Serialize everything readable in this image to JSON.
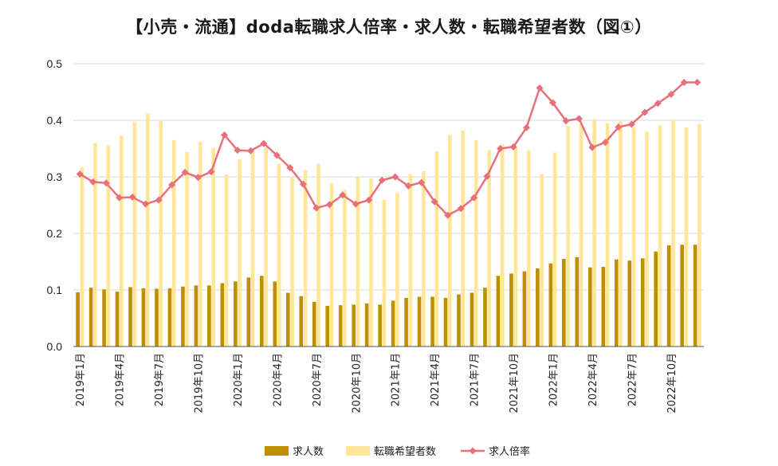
{
  "chart_data": {
    "type": "bar",
    "title": "【小売・流通】doda転職求人倍率・求人数・転職希望者数（図①）",
    "xlabel": "",
    "ylabel": "",
    "ylim": [
      0,
      0.5
    ],
    "yticks": [
      "0.0",
      "0.1",
      "0.2",
      "0.3",
      "0.4",
      "0.5"
    ],
    "grid": "horizontal",
    "legend_position": "bottom",
    "categories": [
      "2019年1月",
      "2019年2月",
      "2019年3月",
      "2019年4月",
      "2019年5月",
      "2019年6月",
      "2019年7月",
      "2019年8月",
      "2019年9月",
      "2019年10月",
      "2019年11月",
      "2019年12月",
      "2020年1月",
      "2020年2月",
      "2020年3月",
      "2020年4月",
      "2020年5月",
      "2020年6月",
      "2020年7月",
      "2020年8月",
      "2020年9月",
      "2020年10月",
      "2020年11月",
      "2020年12月",
      "2021年1月",
      "2021年2月",
      "2021年3月",
      "2021年4月",
      "2021年5月",
      "2021年6月",
      "2021年7月",
      "2021年8月",
      "2021年9月",
      "2021年10月",
      "2021年11月",
      "2021年12月",
      "2022年1月",
      "2022年2月",
      "2022年3月",
      "2022年4月",
      "2022年5月",
      "2022年6月",
      "2022年7月",
      "2022年8月",
      "2022年9月",
      "2022年10月",
      "2022年11月",
      "2022年12月"
    ],
    "x_tick_labels": [
      {
        "index": 0,
        "label": "2019年1月"
      },
      {
        "index": 3,
        "label": "2019年4月"
      },
      {
        "index": 6,
        "label": "2019年7月"
      },
      {
        "index": 9,
        "label": "2019年10月"
      },
      {
        "index": 12,
        "label": "2020年1月"
      },
      {
        "index": 15,
        "label": "2020年4月"
      },
      {
        "index": 18,
        "label": "2020年7月"
      },
      {
        "index": 21,
        "label": "2020年10月"
      },
      {
        "index": 24,
        "label": "2021年1月"
      },
      {
        "index": 27,
        "label": "2021年4月"
      },
      {
        "index": 30,
        "label": "2021年7月"
      },
      {
        "index": 33,
        "label": "2021年10月"
      },
      {
        "index": 36,
        "label": "2022年1月"
      },
      {
        "index": 39,
        "label": "2022年4月"
      },
      {
        "index": 42,
        "label": "2022年7月"
      },
      {
        "index": 45,
        "label": "2022年10月"
      }
    ],
    "series": [
      {
        "name": "求人数",
        "type": "bar",
        "color": "#BF8F00",
        "values": [
          0.096,
          0.104,
          0.101,
          0.097,
          0.105,
          0.103,
          0.102,
          0.103,
          0.106,
          0.108,
          0.108,
          0.112,
          0.115,
          0.122,
          0.125,
          0.115,
          0.095,
          0.089,
          0.079,
          0.072,
          0.073,
          0.074,
          0.076,
          0.074,
          0.081,
          0.086,
          0.088,
          0.088,
          0.086,
          0.092,
          0.095,
          0.104,
          0.125,
          0.129,
          0.133,
          0.138,
          0.147,
          0.155,
          0.158,
          0.14,
          0.141,
          0.154,
          0.152,
          0.156,
          0.168,
          0.179,
          0.18,
          0.18
        ]
      },
      {
        "name": "転職希望者数",
        "type": "bar",
        "color": "#FFE699",
        "values": [
          0.317,
          0.36,
          0.355,
          0.373,
          0.397,
          0.412,
          0.398,
          0.365,
          0.344,
          0.362,
          0.351,
          0.304,
          0.331,
          0.343,
          0.352,
          0.323,
          0.3,
          0.312,
          0.323,
          0.288,
          0.277,
          0.3,
          0.297,
          0.259,
          0.272,
          0.305,
          0.31,
          0.345,
          0.374,
          0.382,
          0.365,
          0.347,
          0.358,
          0.354,
          0.347,
          0.305,
          0.343,
          0.39,
          0.393,
          0.402,
          0.395,
          0.398,
          0.388,
          0.38,
          0.391,
          0.399,
          0.387,
          0.394
        ]
      },
      {
        "name": "求人倍率",
        "type": "line",
        "color": "#E8707A",
        "values": [
          0.305,
          0.291,
          0.289,
          0.263,
          0.264,
          0.252,
          0.259,
          0.286,
          0.308,
          0.299,
          0.309,
          0.374,
          0.347,
          0.346,
          0.359,
          0.338,
          0.316,
          0.287,
          0.245,
          0.251,
          0.268,
          0.252,
          0.259,
          0.294,
          0.3,
          0.284,
          0.29,
          0.256,
          0.232,
          0.244,
          0.263,
          0.301,
          0.35,
          0.353,
          0.387,
          0.457,
          0.431,
          0.399,
          0.403,
          0.352,
          0.361,
          0.388,
          0.393,
          0.414,
          0.43,
          0.446,
          0.467,
          0.467
        ]
      }
    ]
  }
}
